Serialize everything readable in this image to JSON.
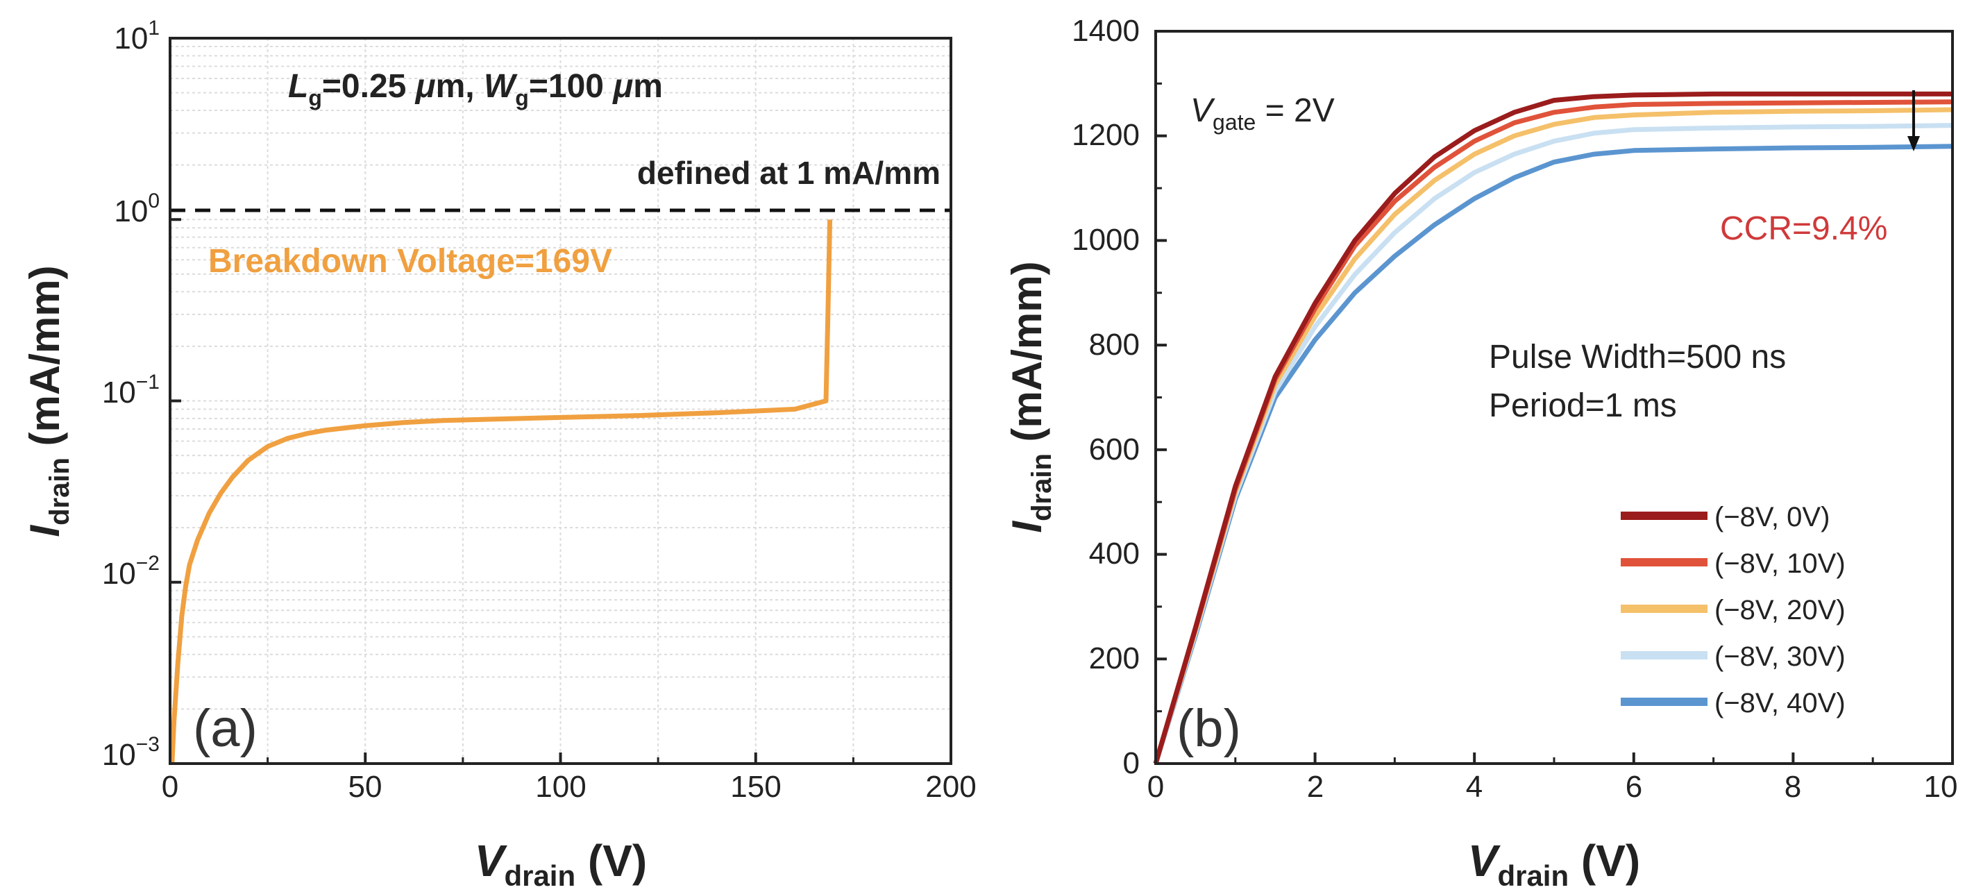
{
  "panel_a": {
    "panel_label": "(a)",
    "annotation_line1": {
      "l": "L",
      "lsub": "g",
      "lval": "=0.25 ",
      "mu1": "μ",
      "unit1": "m, ",
      "w": "W",
      "wsub": "g",
      "wval": "=100 ",
      "mu2": "μ",
      "unit2": "m"
    },
    "threshold_note": "defined at 1 mA/mm",
    "breakdown_label": "Breakdown Voltage=169V",
    "xlabel": {
      "main": "V",
      "sub": "drain",
      "unit": " (V)"
    },
    "ylabel": {
      "main": "I",
      "sub": "drain",
      "unit": " (mA/mm)"
    },
    "x_ticks": [
      "0",
      "50",
      "100",
      "150",
      "200"
    ],
    "y_ticks": [
      {
        "base": "10",
        "exp": "1"
      },
      {
        "base": "10",
        "exp": "0"
      },
      {
        "base": "10",
        "exp": "−1"
      },
      {
        "base": "10",
        "exp": "−2"
      },
      {
        "base": "10",
        "exp": "−3"
      }
    ]
  },
  "panel_b": {
    "panel_label": "(b)",
    "vgate": {
      "v": "V",
      "sub": "gate",
      "rest": " = 2V"
    },
    "ccr": "CCR=9.4%",
    "pulse_width": "Pulse Width=500 ns",
    "period": "Period=1 ms",
    "xlabel": {
      "main": "V",
      "sub": "drain",
      "unit": " (V)"
    },
    "ylabel": {
      "main": "I",
      "sub": "drain",
      "unit": " (mA/mm)"
    },
    "x_ticks": [
      "0",
      "2",
      "4",
      "6",
      "8",
      "10"
    ],
    "y_ticks": [
      "0",
      "200",
      "400",
      "600",
      "800",
      "1000",
      "1200",
      "1400"
    ],
    "legend": [
      "(−8V, 0V)",
      "(−8V, 10V)",
      "(−8V, 20V)",
      "(−8V, 30V)",
      "(−8V, 40V)"
    ]
  },
  "colors": {
    "orange": "#F0A040",
    "ccr_red": "#D0393A",
    "series_b": [
      "#9B1C1C",
      "#E0533A",
      "#F5C06A",
      "#C9E0F2",
      "#5B95D0"
    ]
  },
  "chart_data": [
    {
      "type": "line",
      "title": "",
      "xlabel": "V_drain (V)",
      "ylabel": "I_drain (mA/mm)",
      "xlim": [
        0,
        200
      ],
      "ylim": [
        0.001,
        10
      ],
      "yscale": "log",
      "grid": true,
      "threshold": 1,
      "series": [
        {
          "name": "Breakdown Voltage=169V",
          "x": [
            0.5,
            1,
            2,
            3,
            4,
            5,
            7,
            10,
            13,
            16,
            20,
            25,
            30,
            35,
            40,
            50,
            60,
            70,
            80,
            100,
            120,
            140,
            160,
            168,
            168.5,
            169
          ],
          "y": [
            0.001,
            0.0017,
            0.0036,
            0.0065,
            0.0095,
            0.0125,
            0.017,
            0.024,
            0.031,
            0.038,
            0.047,
            0.056,
            0.062,
            0.066,
            0.069,
            0.073,
            0.076,
            0.078,
            0.079,
            0.081,
            0.083,
            0.086,
            0.09,
            0.1,
            0.3,
            1.0
          ]
        }
      ]
    },
    {
      "type": "line",
      "title": "",
      "xlabel": "V_drain (V)",
      "ylabel": "I_drain (mA/mm)",
      "xlim": [
        0,
        10
      ],
      "ylim": [
        0,
        1400
      ],
      "grid": false,
      "legend_position": "bottom-right",
      "series": [
        {
          "name": "(−8V, 0V)",
          "x": [
            0,
            0.5,
            1,
            1.5,
            2,
            2.5,
            3,
            3.5,
            4,
            4.5,
            5,
            5.5,
            6,
            7,
            8,
            9,
            10
          ],
          "y": [
            0,
            260,
            530,
            740,
            880,
            1000,
            1090,
            1160,
            1210,
            1245,
            1268,
            1275,
            1278,
            1280,
            1280,
            1280,
            1280
          ]
        },
        {
          "name": "(−8V, 10V)",
          "x": [
            0,
            0.5,
            1,
            1.5,
            2,
            2.5,
            3,
            3.5,
            4,
            4.5,
            5,
            5.5,
            6,
            7,
            8,
            9,
            10
          ],
          "y": [
            0,
            258,
            525,
            735,
            870,
            990,
            1075,
            1140,
            1190,
            1225,
            1245,
            1255,
            1260,
            1262,
            1263,
            1264,
            1265
          ]
        },
        {
          "name": "(−8V, 20V)",
          "x": [
            0,
            0.5,
            1,
            1.5,
            2,
            2.5,
            3,
            3.5,
            4,
            4.5,
            5,
            5.5,
            6,
            7,
            8,
            9,
            10
          ],
          "y": [
            0,
            255,
            520,
            725,
            855,
            965,
            1050,
            1115,
            1165,
            1200,
            1222,
            1235,
            1240,
            1245,
            1247,
            1248,
            1250
          ]
        },
        {
          "name": "(−8V, 30V)",
          "x": [
            0,
            0.5,
            1,
            1.5,
            2,
            2.5,
            3,
            3.5,
            4,
            4.5,
            5,
            5.5,
            6,
            7,
            8,
            9,
            10
          ],
          "y": [
            0,
            250,
            512,
            712,
            835,
            935,
            1015,
            1080,
            1130,
            1165,
            1190,
            1205,
            1212,
            1215,
            1217,
            1218,
            1220
          ]
        },
        {
          "name": "(−8V, 40V)",
          "x": [
            0,
            0.5,
            1,
            1.5,
            2,
            2.5,
            3,
            3.5,
            4,
            4.5,
            5,
            5.5,
            6,
            7,
            8,
            9,
            10
          ],
          "y": [
            0,
            245,
            505,
            700,
            810,
            900,
            970,
            1030,
            1080,
            1120,
            1150,
            1165,
            1172,
            1175,
            1177,
            1178,
            1180
          ]
        }
      ]
    }
  ]
}
